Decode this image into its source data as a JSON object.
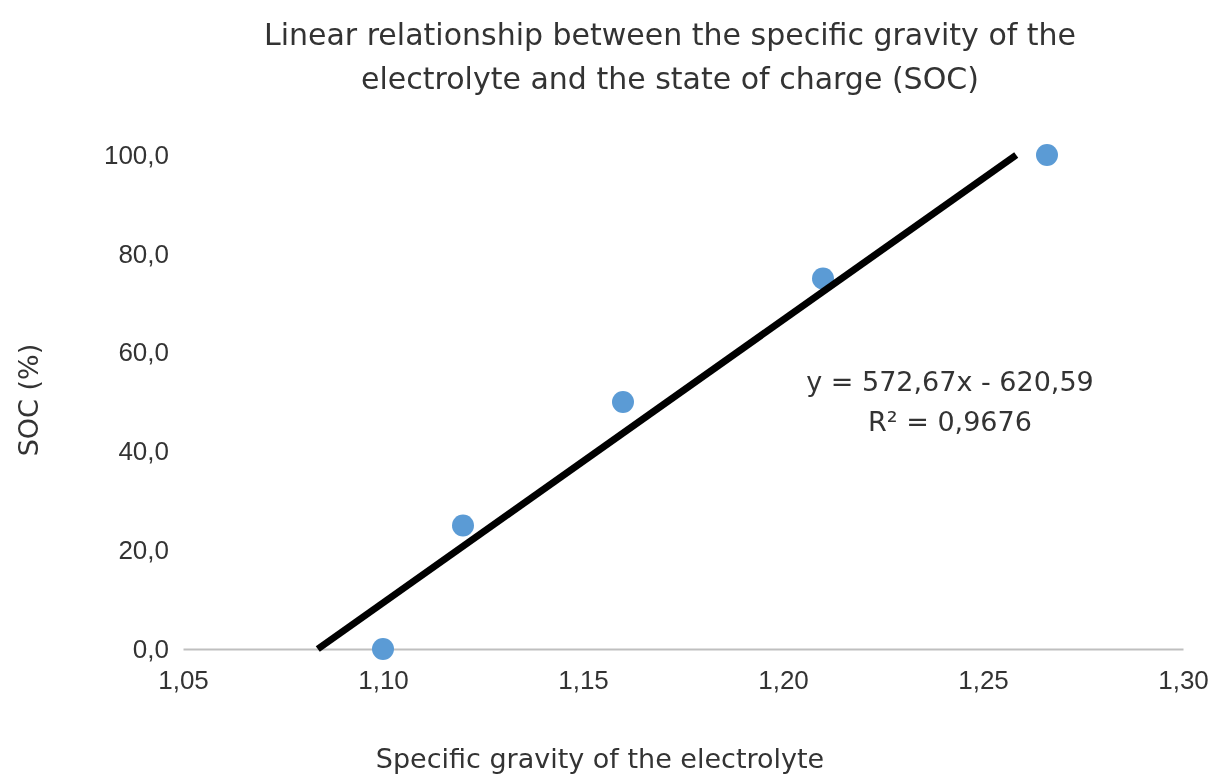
{
  "chart_data": {
    "type": "scatter",
    "title": "Linear relationship between the specific gravity of the electrolyte and the state of charge (SOC)",
    "xlabel": "Specific gravity of the electrolyte",
    "ylabel": "SOC (%)",
    "xlim": [
      1.05,
      1.3
    ],
    "ylim": [
      0,
      100
    ],
    "xticks": [
      {
        "value": 1.05,
        "label": "1,05"
      },
      {
        "value": 1.1,
        "label": "1,10"
      },
      {
        "value": 1.15,
        "label": "1,15"
      },
      {
        "value": 1.2,
        "label": "1,20"
      },
      {
        "value": 1.25,
        "label": "1,25"
      },
      {
        "value": 1.3,
        "label": "1,30"
      }
    ],
    "yticks": [
      {
        "value": 0,
        "label": "0,0"
      },
      {
        "value": 20,
        "label": "20,0"
      },
      {
        "value": 40,
        "label": "40,0"
      },
      {
        "value": 60,
        "label": "60,0"
      },
      {
        "value": 80,
        "label": "80,0"
      },
      {
        "value": 100,
        "label": "100,0"
      }
    ],
    "grid": false,
    "marker": "circle",
    "series": [
      {
        "type": "scatter",
        "color": "#5b9bd5",
        "x": [
          1.1,
          1.12,
          1.16,
          1.21,
          1.266
        ],
        "values": [
          0,
          25,
          50,
          75,
          100
        ]
      },
      {
        "type": "line",
        "color": "#000000",
        "x": [
          1.0837,
          1.2583
        ],
        "values": [
          0,
          100
        ],
        "marker": "none",
        "line_style": "solid"
      }
    ],
    "annotations": [
      "y = 572,67x - 620,59",
      "R² = 0,9676"
    ]
  }
}
